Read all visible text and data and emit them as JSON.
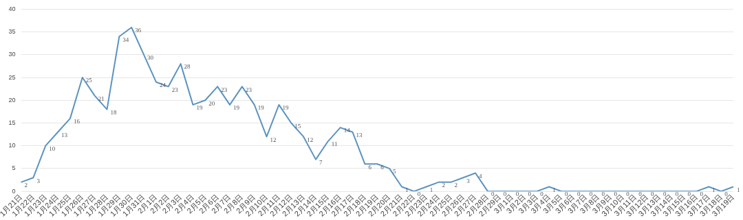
{
  "chart_data": {
    "type": "line",
    "categories": [
      "1月21日",
      "1月22日",
      "1月23日",
      "1月24日",
      "1月25日",
      "1月26日",
      "1月27日",
      "1月28日",
      "1月29日",
      "1月30日",
      "1月31日",
      "2月1日",
      "2月2日",
      "2月3日",
      "2月4日",
      "2月5日",
      "2月6日",
      "2月7日",
      "2月8日",
      "2月9日",
      "2月10日",
      "2月11日",
      "2月12日",
      "2月13日",
      "2月14日",
      "2月15日",
      "2月16日",
      "2月17日",
      "2月18日",
      "2月19日",
      "2月20日",
      "2月21日",
      "2月22日",
      "2月23日",
      "2月24日",
      "2月25日",
      "2月26日",
      "2月27日",
      "2月28日",
      "2月29日",
      "3月1日",
      "3月2日",
      "3月3日",
      "3月4日",
      "3月5日",
      "3月6日",
      "3月7日",
      "3月8日",
      "3月9日",
      "3月10日",
      "3月11日",
      "3月12日",
      "3月13日",
      "3月14日",
      "3月15日",
      "3月16日",
      "3月17日",
      "3月18日",
      "3月19日"
    ],
    "series": [
      {
        "color": "#5b93c2",
        "values": [
          2,
          3,
          10,
          13,
          16,
          25,
          21,
          18,
          34,
          36,
          30,
          24,
          23,
          28,
          19,
          20,
          23,
          19,
          23,
          19,
          12,
          19,
          15,
          12,
          7,
          11,
          14,
          13,
          6,
          6,
          5,
          1,
          0,
          1,
          2,
          2,
          3,
          4,
          0,
          0,
          0,
          0,
          0,
          1,
          0,
          0,
          0,
          0,
          0,
          0,
          0,
          0,
          0,
          0,
          0,
          0,
          1,
          0,
          1
        ]
      }
    ],
    "ylim": [
      0,
      40
    ],
    "yticks": [
      0,
      5,
      10,
      15,
      20,
      25,
      30,
      35,
      40
    ],
    "grid": "y",
    "legend": false,
    "marker": "none",
    "line_style": "solid",
    "data_labels": true
  }
}
